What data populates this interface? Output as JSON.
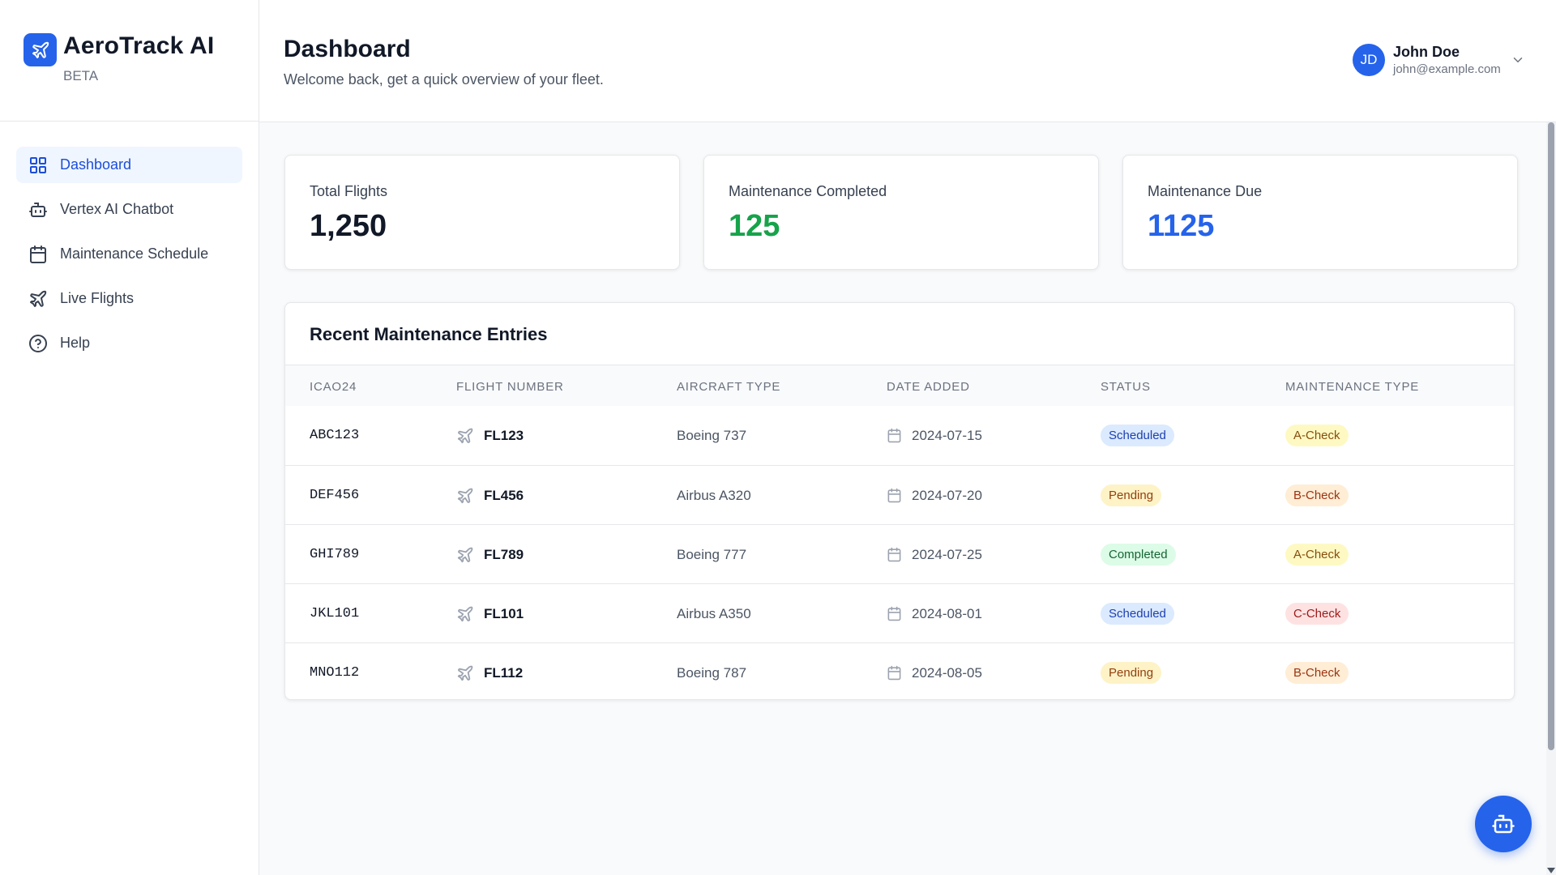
{
  "brand": {
    "name": "AeroTrack AI",
    "badge": "BETA"
  },
  "sidebar": {
    "items": [
      {
        "label": "Dashboard",
        "icon": "grid-icon",
        "active": true
      },
      {
        "label": "Vertex AI Chatbot",
        "icon": "bot-icon"
      },
      {
        "label": "Maintenance Schedule",
        "icon": "calendar-icon"
      },
      {
        "label": "Live Flights",
        "icon": "plane-icon"
      },
      {
        "label": "Help",
        "icon": "help-circle-icon"
      }
    ]
  },
  "header": {
    "title": "Dashboard",
    "subtitle": "Welcome back, get a quick overview of your fleet.",
    "user": {
      "initials": "JD",
      "name": "John Doe",
      "email": "john@example.com"
    }
  },
  "stats": [
    {
      "label": "Total Flights",
      "value": "1,250",
      "color": "#111827"
    },
    {
      "label": "Maintenance Completed",
      "value": "125",
      "color": "#16a34a"
    },
    {
      "label": "Maintenance Due",
      "value": "1125",
      "color": "#2563eb"
    }
  ],
  "table": {
    "title": "Recent Maintenance Entries",
    "columns": [
      "ICAO24",
      "Flight Number",
      "Aircraft Type",
      "Date Added",
      "Status",
      "Maintenance Type"
    ],
    "rows": [
      {
        "icao": "ABC123",
        "flight": "FL123",
        "aircraft": "Boeing 737",
        "date": "2024-07-15",
        "status": "Scheduled",
        "type": "A-Check"
      },
      {
        "icao": "DEF456",
        "flight": "FL456",
        "aircraft": "Airbus A320",
        "date": "2024-07-20",
        "status": "Pending",
        "type": "B-Check"
      },
      {
        "icao": "GHI789",
        "flight": "FL789",
        "aircraft": "Boeing 777",
        "date": "2024-07-25",
        "status": "Completed",
        "type": "A-Check"
      },
      {
        "icao": "JKL101",
        "flight": "FL101",
        "aircraft": "Airbus A350",
        "date": "2024-08-01",
        "status": "Scheduled",
        "type": "C-Check"
      },
      {
        "icao": "MNO112",
        "flight": "FL112",
        "aircraft": "Boeing 787",
        "date": "2024-08-05",
        "status": "Pending",
        "type": "B-Check"
      }
    ]
  },
  "colors": {
    "accent": "#2563eb",
    "active_nav_bg": "#eff6ff"
  }
}
